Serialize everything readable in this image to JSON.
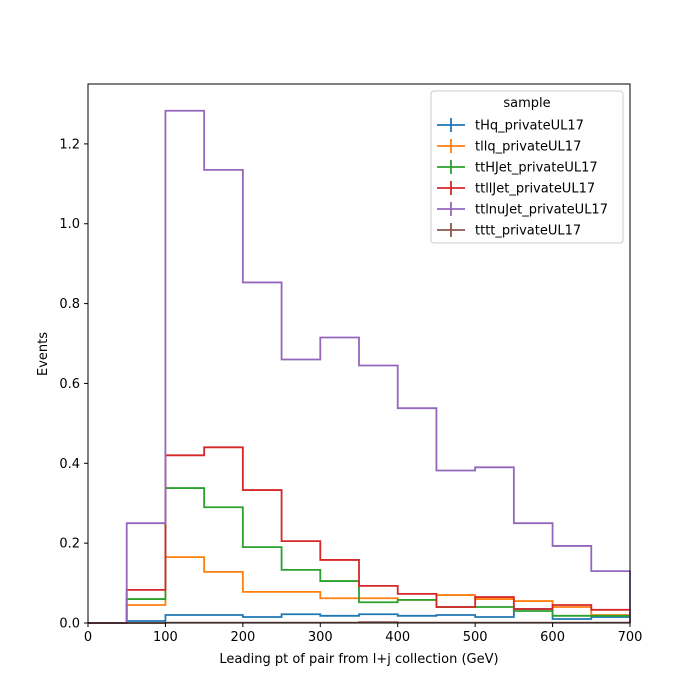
{
  "chart_data": {
    "type": "step",
    "title": "",
    "xlabel": "Leading pt of pair from l+j collection (GeV)",
    "ylabel": "Events",
    "xlim": [
      0,
      700
    ],
    "ylim": [
      0,
      1.35
    ],
    "grid": false,
    "bin_edges": [
      0,
      50,
      100,
      150,
      200,
      250,
      300,
      350,
      400,
      450,
      500,
      550,
      600,
      650,
      700
    ],
    "x_ticks": [
      0,
      100,
      200,
      300,
      400,
      500,
      600,
      700
    ],
    "x_tick_labels": [
      "0",
      "100",
      "200",
      "300",
      "400",
      "500",
      "600",
      "700"
    ],
    "y_ticks": [
      0,
      0.2,
      0.4,
      0.6,
      0.8,
      1.0,
      1.2
    ],
    "y_tick_labels": [
      "0.0",
      "0.2",
      "0.4",
      "0.6",
      "0.8",
      "1.0",
      "1.2"
    ],
    "legend": {
      "title": "sample",
      "position": "top-right"
    },
    "series": [
      {
        "name": "tHq_privateUL17",
        "color": "#1f77b4",
        "values": [
          0,
          0.005,
          0.02,
          0.02,
          0.015,
          0.022,
          0.018,
          0.022,
          0.018,
          0.02,
          0.015,
          0.035,
          0.01,
          0.015
        ]
      },
      {
        "name": "tllq_privateUL17",
        "color": "#ff7f0e",
        "values": [
          0,
          0.045,
          0.165,
          0.128,
          0.078,
          0.078,
          0.062,
          0.062,
          0.058,
          0.07,
          0.06,
          0.055,
          0.04,
          0.02
        ]
      },
      {
        "name": "ttHJet_privateUL17",
        "color": "#2ca02c",
        "values": [
          0,
          0.06,
          0.338,
          0.29,
          0.19,
          0.133,
          0.105,
          0.052,
          0.058,
          0.04,
          0.04,
          0.03,
          0.018,
          0.018
        ]
      },
      {
        "name": "ttllJet_privateUL17",
        "color": "#d62728",
        "values": [
          0,
          0.083,
          0.42,
          0.44,
          0.333,
          0.205,
          0.158,
          0.093,
          0.073,
          0.04,
          0.065,
          0.035,
          0.045,
          0.033
        ]
      },
      {
        "name": "ttlnuJet_privateUL17",
        "color": "#9467bd",
        "values": [
          0,
          0.25,
          1.283,
          1.135,
          0.853,
          0.66,
          0.715,
          0.645,
          0.538,
          0.382,
          0.39,
          0.25,
          0.193,
          0.13
        ]
      },
      {
        "name": "tttt_privateUL17",
        "color": "#8c564b",
        "values": [
          0,
          0,
          0.001,
          0.001,
          0.001,
          0.001,
          0.001,
          0.002,
          0.001,
          0.001,
          0.001,
          0.001,
          0.001,
          0.001
        ]
      }
    ]
  }
}
